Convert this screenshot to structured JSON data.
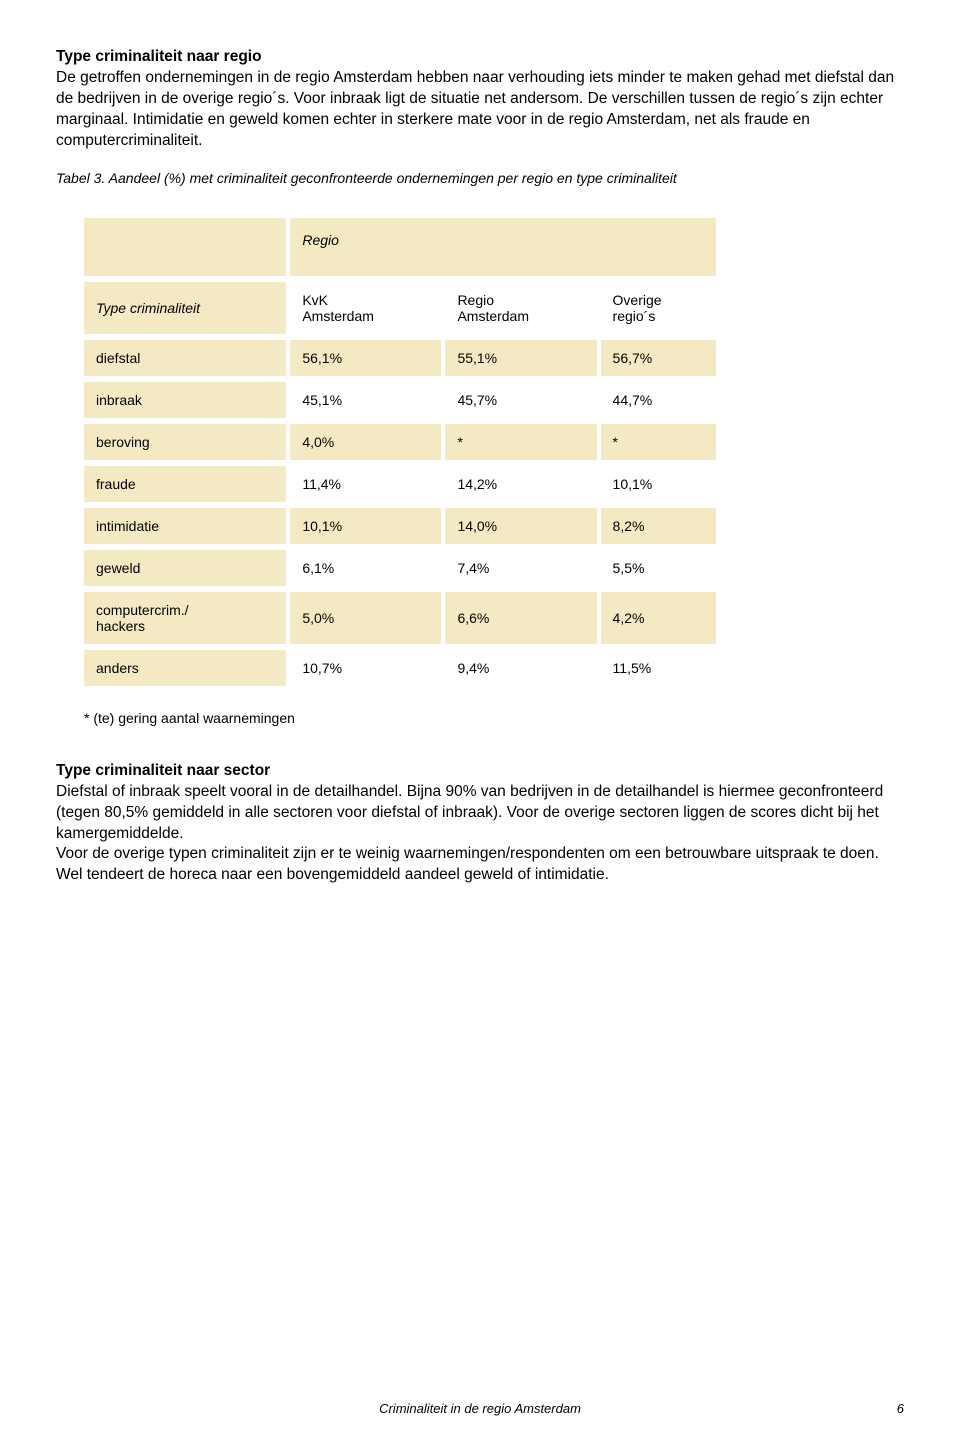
{
  "colors": {
    "header_bg": "#f3eac4",
    "row_odd_bg": "#f3eac4",
    "row_even_bg": "#ffffff",
    "text": "#000000"
  },
  "section1": {
    "heading": "Type criminaliteit naar regio",
    "body": "De getroffen ondernemingen in de regio Amsterdam hebben naar verhouding iets minder te maken gehad met diefstal dan de bedrijven in de overige regio´s. Voor inbraak ligt de situatie net andersom. De verschillen tussen de regio´s zijn echter marginaal. Intimidatie en geweld komen echter in sterkere mate voor in de regio Amsterdam, net als fraude en computercriminaliteit."
  },
  "table": {
    "caption": "Tabel 3. Aandeel (%) met criminaliteit geconfronteerde ondernemingen per regio en type criminaliteit",
    "region_top_label": "Regio",
    "row_header_label": "Type criminaliteit",
    "columns": [
      "KvK Amsterdam",
      "Regio Amsterdam",
      "Overige regio´s"
    ],
    "rows": [
      {
        "label": "diefstal",
        "cells": [
          "56,1%",
          "55,1%",
          "56,7%"
        ]
      },
      {
        "label": "inbraak",
        "cells": [
          "45,1%",
          "45,7%",
          "44,7%"
        ]
      },
      {
        "label": "beroving",
        "cells": [
          "4,0%",
          "*",
          "*"
        ]
      },
      {
        "label": "fraude",
        "cells": [
          "11,4%",
          "14,2%",
          "10,1%"
        ]
      },
      {
        "label": "intimidatie",
        "cells": [
          "10,1%",
          "14,0%",
          "8,2%"
        ]
      },
      {
        "label": "geweld",
        "cells": [
          "6,1%",
          "7,4%",
          "5,5%"
        ]
      },
      {
        "label": "computercrim./ hackers",
        "cells": [
          "5,0%",
          "6,6%",
          "4,2%"
        ]
      },
      {
        "label": "anders",
        "cells": [
          "10,7%",
          "9,4%",
          "11,5%"
        ]
      }
    ],
    "footnote": "* (te) gering aantal waarnemingen"
  },
  "section2": {
    "heading": "Type criminaliteit naar sector",
    "body": "Diefstal of inbraak speelt vooral in de detailhandel. Bijna 90% van bedrijven in de detailhandel is hiermee geconfronteerd (tegen 80,5% gemiddeld in alle sectoren voor diefstal of inbraak). Voor de overige sectoren liggen de scores dicht bij het kamergemiddelde.\nVoor de overige typen criminaliteit zijn er te weinig waarnemingen/respondenten om een betrouwbare uitspraak te doen. Wel tendeert de horeca naar een bovengemiddeld aandeel geweld of intimidatie."
  },
  "footer": {
    "title": "Criminaliteit in de regio Amsterdam",
    "page": "6"
  }
}
